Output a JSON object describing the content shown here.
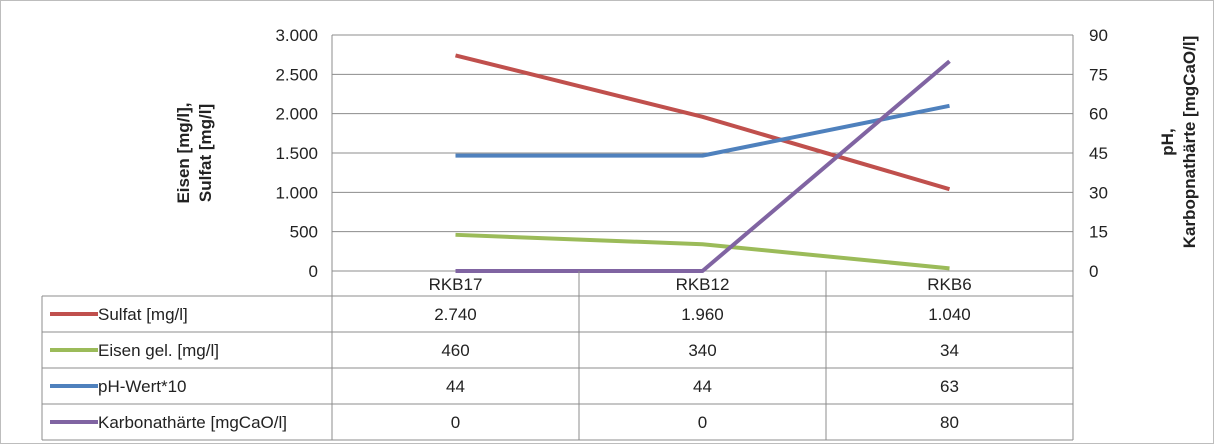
{
  "chart_data": {
    "type": "line",
    "categories": [
      "RKB17",
      "RKB12",
      "RKB6"
    ],
    "y_left": {
      "title_lines": [
        "Eisen [mg/l],",
        "Sulfat [mg/l]"
      ],
      "range": [
        0,
        3000
      ],
      "ticks": [
        0,
        500,
        1000,
        1500,
        2000,
        2500,
        3000
      ],
      "tick_labels": [
        "0",
        "500",
        "1.000",
        "1.500",
        "2.000",
        "2.500",
        "3.000"
      ]
    },
    "y_right": {
      "title_lines": [
        "pH,",
        "Karbopnathärte  [mgCaO/l]"
      ],
      "range": [
        0,
        90
      ],
      "ticks": [
        0,
        15,
        30,
        45,
        60,
        75,
        90
      ],
      "tick_labels": [
        "0",
        "15",
        "30",
        "45",
        "60",
        "75",
        "90"
      ]
    },
    "grid": true,
    "legend": "data-table",
    "series": [
      {
        "name": "Sulfat [mg/l]",
        "axis": "left",
        "color": "#C0504D",
        "values": [
          2740,
          1960,
          1040
        ],
        "labels": [
          "2.740",
          "1.960",
          "1.040"
        ]
      },
      {
        "name": "Eisen gel. [mg/l]",
        "axis": "left",
        "color": "#9BBB59",
        "values": [
          460,
          340,
          34
        ],
        "labels": [
          "460",
          "340",
          "34"
        ]
      },
      {
        "name": "pH-Wert*10",
        "axis": "right",
        "color": "#4F81BD",
        "values": [
          44,
          44,
          63
        ],
        "labels": [
          "44",
          "44",
          "63"
        ]
      },
      {
        "name": "Karbonathärte [mgCaO/l]",
        "axis": "right",
        "color": "#8064A2",
        "values": [
          0,
          0,
          80
        ],
        "labels": [
          "0",
          "0",
          "80"
        ]
      }
    ]
  }
}
